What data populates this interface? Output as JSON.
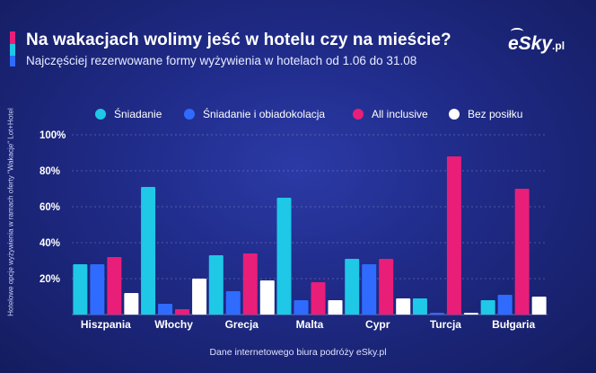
{
  "header": {
    "title": "Na wakacjach wolimy jeść w hotelu czy na mieście?",
    "subtitle": "Najczęściej rezerwowane formy wyżywienia w hotelach od 1.06 do 31.08"
  },
  "brand": {
    "logo_main": "eSky",
    "logo_suffix": ".pl"
  },
  "footer": {
    "source": "Dane internetowego biura podróży eSky.pl"
  },
  "colors": {
    "sniadanie": "#1ec8e6",
    "obiadokolacja": "#2f6bff",
    "all_inclusive": "#e91e78",
    "bez_posilku": "#ffffff",
    "accent_pink": "#e91e78",
    "accent_cyan": "#1ec8e6",
    "accent_blue": "#2f6bff"
  },
  "chart_data": {
    "type": "bar",
    "title": "Na wakacjach wolimy jeść w hotelu czy na mieście?",
    "subtitle": "Najczęściej rezerwowane formy wyżywienia w hotelach od 1.06 do 31.08",
    "ylabel": "Hotelowe opcje wyżywienia w ramach oferty \"Wakacje\" Lot+Hotel",
    "xlabel": "",
    "ylim": [
      0,
      100
    ],
    "yticks": [
      "20%",
      "40%",
      "60%",
      "80%",
      "100%"
    ],
    "ytick_values": [
      20,
      40,
      60,
      80,
      100
    ],
    "grid": true,
    "legend_position": "top",
    "categories": [
      "Hiszpania",
      "Włochy",
      "Grecja",
      "Malta",
      "Cypr",
      "Turcja",
      "Bułgaria"
    ],
    "series": [
      {
        "name": "Śniadanie",
        "color": "#1ec8e6",
        "values": [
          28,
          71,
          33,
          65,
          31,
          9,
          8
        ]
      },
      {
        "name": "Śniadanie i obiadokolacja",
        "color": "#2f6bff",
        "values": [
          28,
          6,
          13,
          8,
          28,
          1,
          11
        ]
      },
      {
        "name": "All inclusive",
        "color": "#e91e78",
        "values": [
          32,
          3,
          34,
          18,
          31,
          88,
          70
        ]
      },
      {
        "name": "Bez posiłku",
        "color": "#ffffff",
        "values": [
          12,
          20,
          19,
          8,
          9,
          1,
          10
        ]
      }
    ]
  }
}
